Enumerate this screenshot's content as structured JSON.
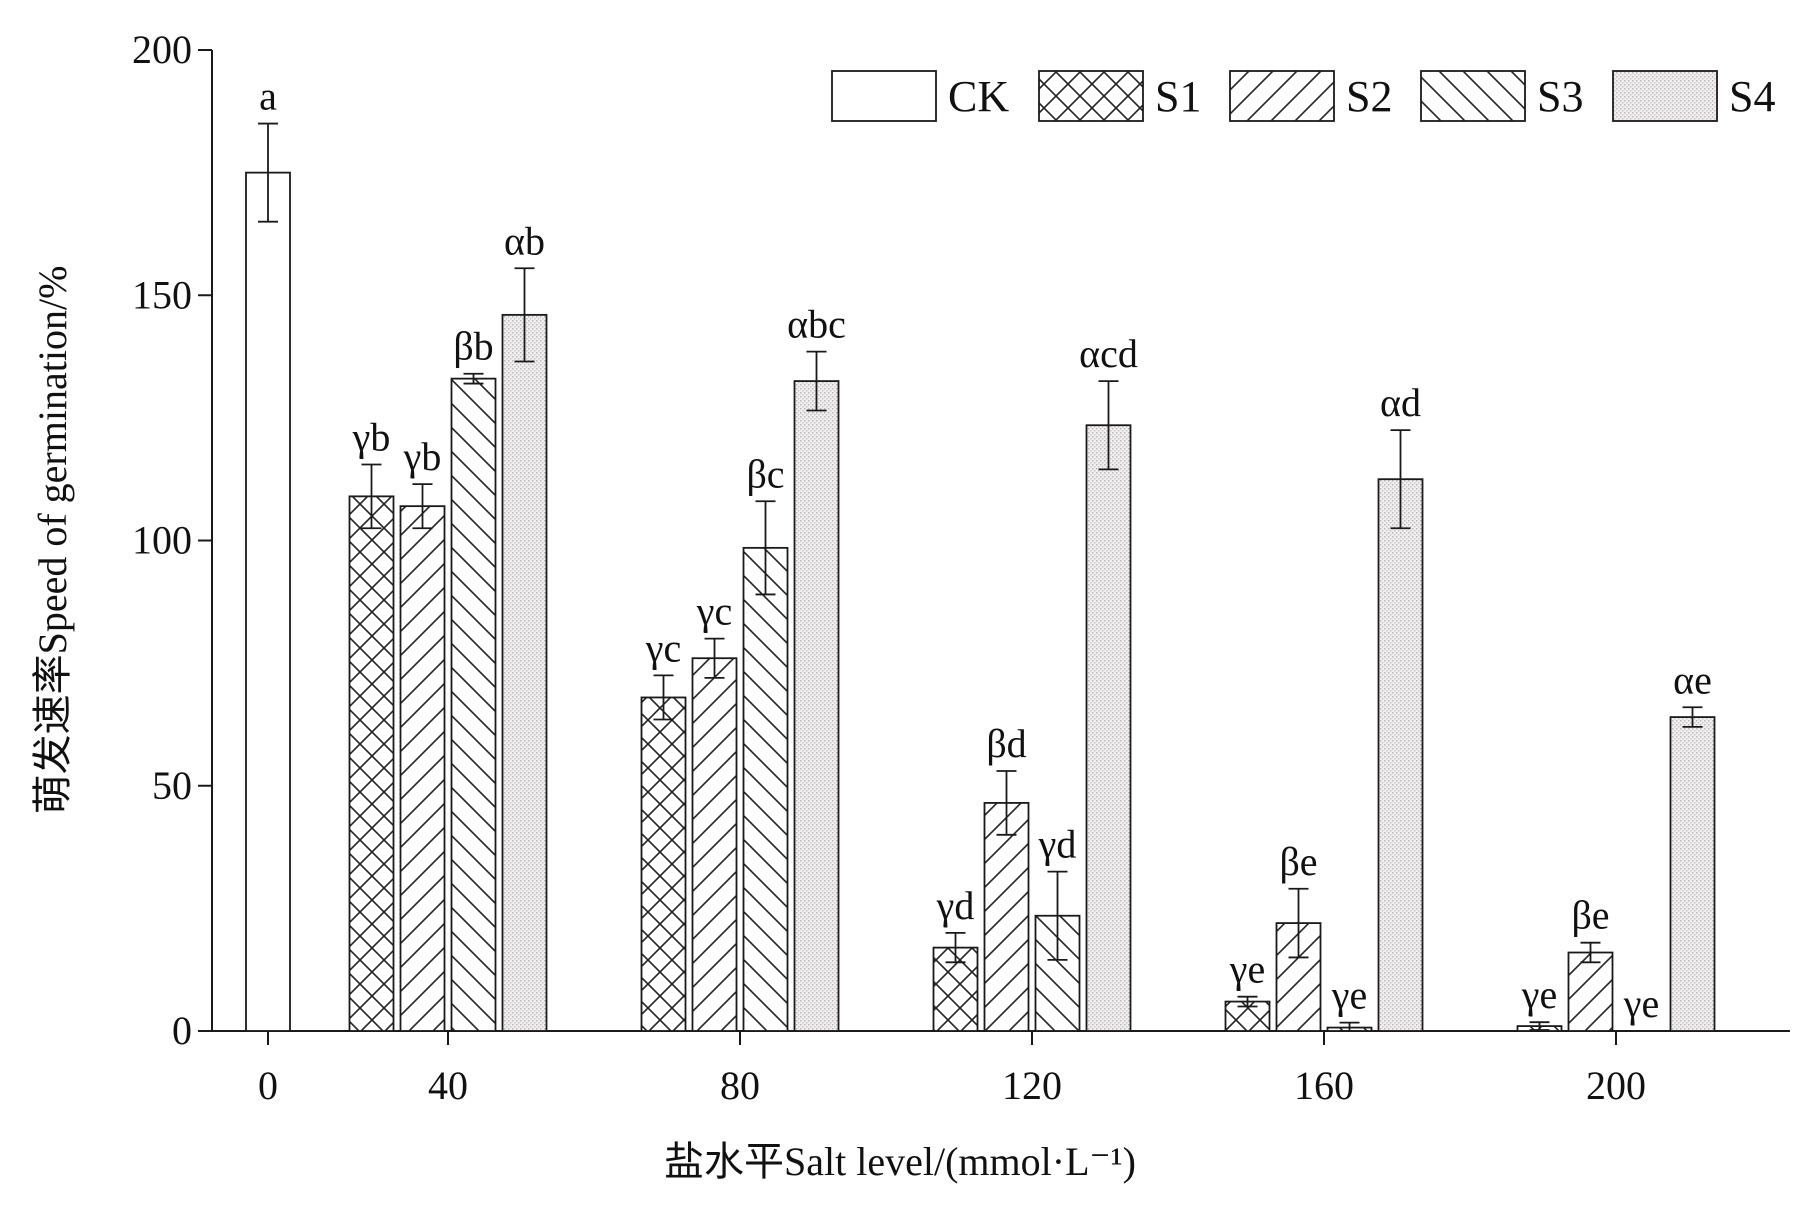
{
  "chart_data": {
    "type": "bar",
    "xlabel": "盐水平Salt level/(mmol·L⁻¹)",
    "ylabel": "萌发速率Speed of germination/%",
    "ylim": [
      0,
      200
    ],
    "yticks": [
      "0",
      "50",
      "100",
      "150",
      "200"
    ],
    "categories": [
      "0",
      "40",
      "80",
      "120",
      "160",
      "200"
    ],
    "legend_position": "top-right",
    "series": [
      {
        "name": "CK",
        "pattern": "none",
        "values": [
          175,
          null,
          null,
          null,
          null,
          null
        ],
        "errors": [
          10,
          null,
          null,
          null,
          null,
          null
        ],
        "letters": [
          "a",
          null,
          null,
          null,
          null,
          null
        ]
      },
      {
        "name": "S1",
        "pattern": "crosshatch",
        "values": [
          null,
          109,
          68,
          17,
          6,
          1
        ],
        "errors": [
          null,
          6.5,
          4.5,
          3,
          1,
          0.8
        ],
        "letters": [
          null,
          "γb",
          "γc",
          "γd",
          "γe",
          "γe"
        ]
      },
      {
        "name": "S2",
        "pattern": "forward-diagonal",
        "values": [
          null,
          107,
          76,
          46.5,
          22,
          16
        ],
        "errors": [
          null,
          4.5,
          4,
          6.5,
          7,
          2
        ],
        "letters": [
          null,
          "γb",
          "γc",
          "βd",
          "βe",
          "βe"
        ]
      },
      {
        "name": "S3",
        "pattern": "backward-diagonal",
        "values": [
          null,
          133,
          98.5,
          23.5,
          0.7,
          0
        ],
        "errors": [
          null,
          1,
          9.5,
          9,
          1,
          0
        ],
        "letters": [
          null,
          "βb",
          "βc",
          "γd",
          "γe",
          "γe"
        ]
      },
      {
        "name": "S4",
        "pattern": "dotted",
        "values": [
          null,
          146,
          132.5,
          123.5,
          112.5,
          64
        ],
        "errors": [
          null,
          9.5,
          6,
          9,
          10,
          2
        ],
        "letters": [
          null,
          "αb",
          "αbc",
          "αcd",
          "αd",
          "αe"
        ]
      }
    ]
  }
}
